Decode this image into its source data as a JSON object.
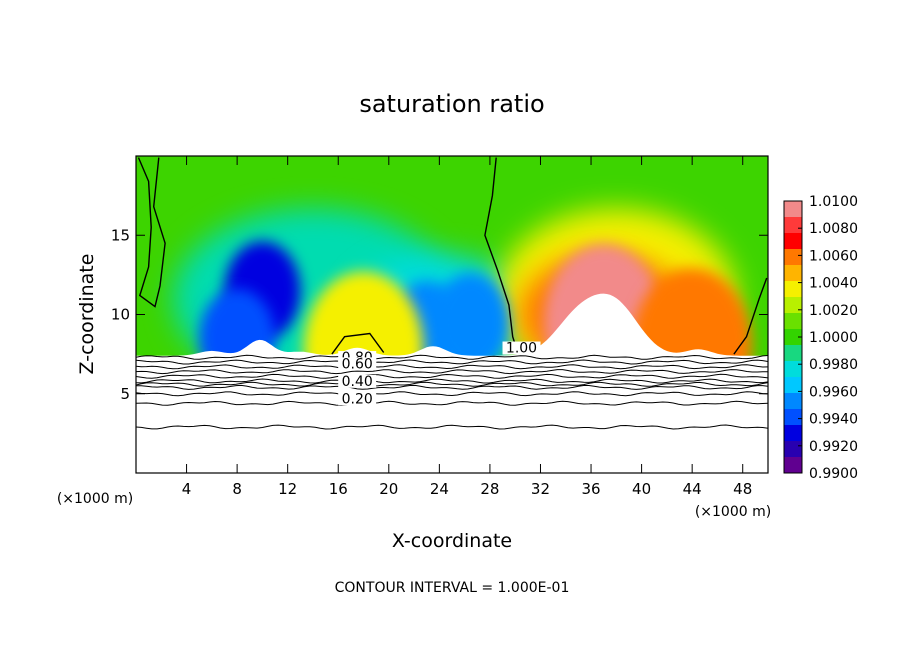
{
  "chart_data": {
    "type": "heatmap",
    "title": "saturation ratio",
    "xlabel": "X-coordinate",
    "ylabel": "Z-coordinate",
    "x_unit_left": "(×1000 m)",
    "x_unit_right": "(×1000 m)",
    "footer": "CONTOUR INTERVAL = 1.000E-01",
    "xlim": [
      0,
      50
    ],
    "ylim": [
      0,
      20
    ],
    "x_ticks": [
      4,
      8,
      12,
      16,
      20,
      24,
      28,
      32,
      36,
      40,
      44,
      48
    ],
    "y_ticks": [
      5,
      10,
      15
    ],
    "colorbar": {
      "range": [
        0.99,
        1.01
      ],
      "labels": [
        "1.0100",
        "1.0080",
        "1.0060",
        "1.0040",
        "1.0020",
        "1.0000",
        "0.9980",
        "0.9960",
        "0.9940",
        "0.9920",
        "0.9900"
      ],
      "colors": [
        "#f28a8a",
        "#ff3a3a",
        "#ff0000",
        "#ff7800",
        "#ffb400",
        "#f5f000",
        "#b8f000",
        "#6ae000",
        "#33d400",
        "#18d880",
        "#00dcdc",
        "#00c8ff",
        "#0088ff",
        "#0050ff",
        "#0000e0",
        "#2800b0",
        "#600090"
      ]
    },
    "contour_labels": [
      {
        "text": "0.80",
        "x": 17.5,
        "z": 7.0
      },
      {
        "text": "0.60",
        "x": 17.5,
        "z": 6.6
      },
      {
        "text": "0.40",
        "x": 17.5,
        "z": 5.5
      },
      {
        "text": "0.20",
        "x": 17.5,
        "z": 4.4
      },
      {
        "text": "1.00",
        "x": 30.5,
        "z": 7.6
      }
    ],
    "colormap": [
      "#600090",
      "#2800b0",
      "#0000e0",
      "#0050ff",
      "#0088ff",
      "#00c8ff",
      "#00dcdc",
      "#18d880",
      "#33d400",
      "#6ae000",
      "#b8f000",
      "#f5f000",
      "#ffb400",
      "#ff7800",
      "#ff0000",
      "#ff3a3a",
      "#f28a8a"
    ],
    "field_description": "saturation ratio field, cloud top near Z=7.4",
    "cloud_top_z": 7.4,
    "features": [
      {
        "kind": "dry",
        "x": 10.0,
        "z": 11.5,
        "value": 0.992
      },
      {
        "kind": "dry",
        "x": 8.0,
        "z": 8.5,
        "value": 0.9935
      },
      {
        "kind": "dry",
        "x": 23.0,
        "z": 9.0,
        "value": 0.9945
      },
      {
        "kind": "dry",
        "x": 26.5,
        "z": 9.5,
        "value": 0.995
      },
      {
        "kind": "moist",
        "x": 37.0,
        "z": 9.5,
        "value": 1.01
      },
      {
        "kind": "moist",
        "x": 44.0,
        "z": 8.0,
        "value": 1.006
      },
      {
        "kind": "moist",
        "x": 18.0,
        "z": 7.8,
        "value": 1.004
      }
    ],
    "contour_levels_z": [
      7.3,
      7.0,
      6.7,
      6.4,
      6.1,
      5.8,
      5.6,
      5.4,
      5.0,
      4.4,
      2.9
    ]
  }
}
